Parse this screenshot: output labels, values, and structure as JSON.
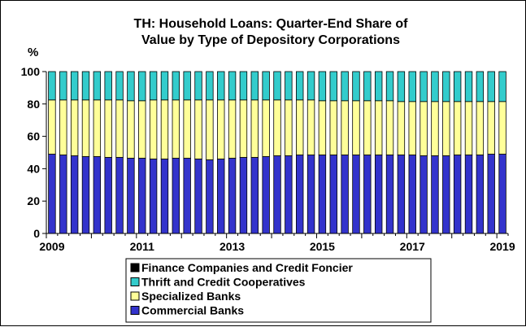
{
  "chart_data": {
    "type": "bar",
    "stacked": true,
    "title": "TH: Household Loans: Quarter-End Share of Value by Type of Depository Corporations",
    "title_lines": [
      "TH: Household Loans: Quarter-End Share of",
      "Value by Type of Depository Corporations"
    ],
    "ylabel": "%",
    "xlabel": "",
    "ylim": [
      0,
      100
    ],
    "yticks": [
      0,
      20,
      40,
      60,
      80,
      100
    ],
    "xtick_labels": [
      "2009",
      "2011",
      "2013",
      "2015",
      "2017",
      "2019"
    ],
    "grid": false,
    "legend_position": "bottom",
    "categories": [
      "2009 Q1",
      "2009 Q2",
      "2009 Q3",
      "2009 Q4",
      "2010 Q1",
      "2010 Q2",
      "2010 Q3",
      "2010 Q4",
      "2011 Q1",
      "2011 Q2",
      "2011 Q3",
      "2011 Q4",
      "2012 Q1",
      "2012 Q2",
      "2012 Q3",
      "2012 Q4",
      "2013 Q1",
      "2013 Q2",
      "2013 Q3",
      "2013 Q4",
      "2014 Q1",
      "2014 Q2",
      "2014 Q3",
      "2014 Q4",
      "2015 Q1",
      "2015 Q2",
      "2015 Q3",
      "2015 Q4",
      "2016 Q1",
      "2016 Q2",
      "2016 Q3",
      "2016 Q4",
      "2017 Q1",
      "2017 Q2",
      "2017 Q3",
      "2017 Q4",
      "2018 Q1",
      "2018 Q2",
      "2018 Q3",
      "2018 Q4",
      "2019 Q1"
    ],
    "series": [
      {
        "name": "Commercial Banks",
        "color": "#3333cc",
        "values": [
          49.0,
          48.5,
          48.0,
          47.5,
          47.5,
          47.0,
          47.0,
          46.5,
          46.5,
          46.0,
          46.0,
          46.5,
          46.5,
          46.0,
          45.5,
          46.0,
          46.5,
          47.0,
          47.0,
          47.5,
          48.0,
          48.0,
          48.5,
          48.5,
          48.5,
          48.5,
          48.5,
          48.5,
          48.5,
          48.5,
          48.5,
          48.5,
          48.5,
          48.0,
          48.0,
          48.0,
          48.5,
          48.5,
          48.5,
          49.0,
          49.0
        ]
      },
      {
        "name": "Specialized Banks",
        "color": "#ffff99",
        "values": [
          33.5,
          34.0,
          34.5,
          35.0,
          35.0,
          35.5,
          35.5,
          35.5,
          35.5,
          36.5,
          36.5,
          36.0,
          36.0,
          36.5,
          37.0,
          36.5,
          36.0,
          35.5,
          35.5,
          35.0,
          34.5,
          34.5,
          34.0,
          34.0,
          33.5,
          33.5,
          33.5,
          33.5,
          33.5,
          33.5,
          33.5,
          33.0,
          33.0,
          33.5,
          33.5,
          33.5,
          33.0,
          33.0,
          33.0,
          32.5,
          32.5
        ]
      },
      {
        "name": "Thrift and Credit Cooperatives",
        "color": "#33cccc",
        "values": [
          17.5,
          17.5,
          17.5,
          17.5,
          17.5,
          17.5,
          17.5,
          18.0,
          18.0,
          17.5,
          17.5,
          17.5,
          17.5,
          17.5,
          17.5,
          17.5,
          17.5,
          17.5,
          17.5,
          17.5,
          17.5,
          17.5,
          17.5,
          17.5,
          18.0,
          18.0,
          18.0,
          18.0,
          18.0,
          18.0,
          18.0,
          18.5,
          18.5,
          18.5,
          18.5,
          18.5,
          18.5,
          18.5,
          18.5,
          18.5,
          18.5
        ]
      },
      {
        "name": "Finance Companies and Credit Foncier",
        "color": "#000000",
        "values": [
          0,
          0,
          0,
          0,
          0,
          0,
          0,
          0,
          0,
          0,
          0,
          0,
          0,
          0,
          0,
          0,
          0,
          0,
          0,
          0,
          0,
          0,
          0,
          0,
          0,
          0,
          0,
          0,
          0,
          0,
          0,
          0,
          0,
          0,
          0,
          0,
          0,
          0,
          0,
          0,
          0
        ]
      }
    ],
    "legend_order": [
      "Finance Companies and Credit Foncier",
      "Thrift and Credit Cooperatives",
      "Specialized Banks",
      "Commercial Banks"
    ]
  }
}
